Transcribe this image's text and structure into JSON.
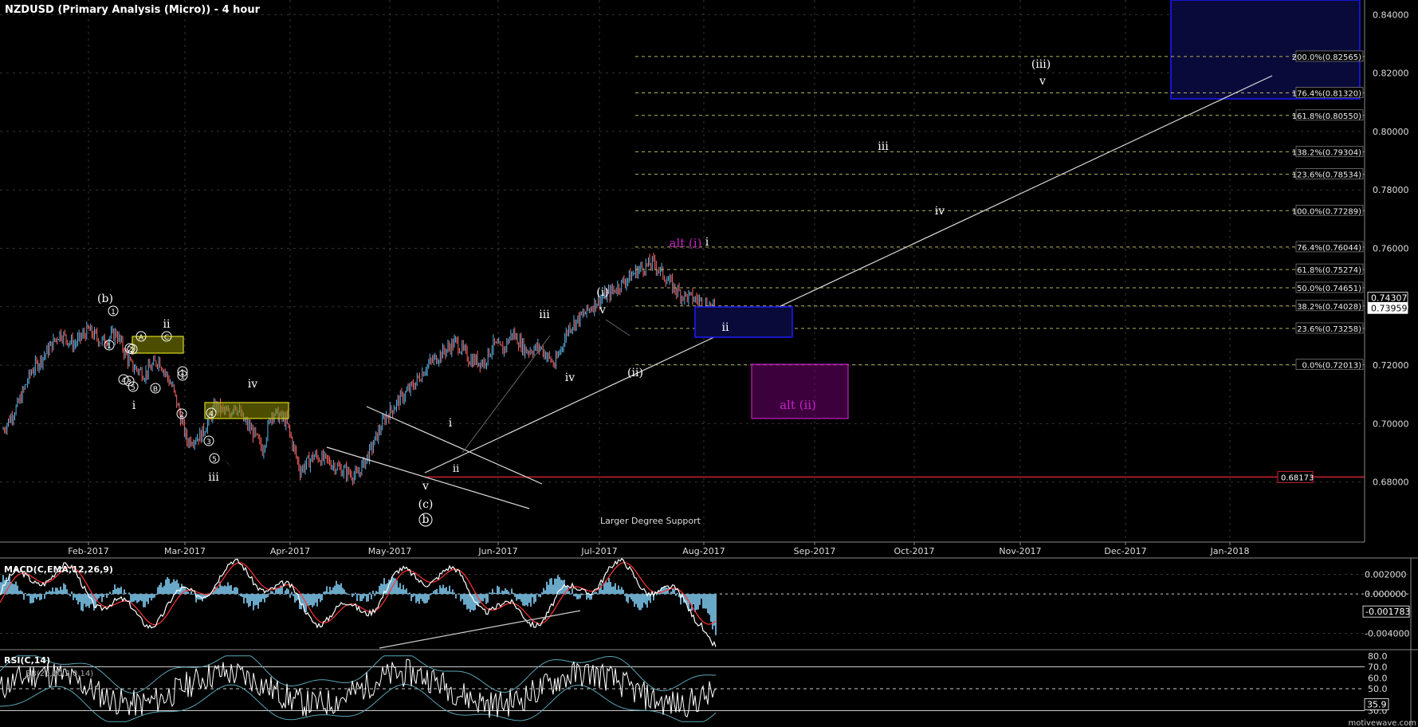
{
  "title": "NZDUSD (Primary Analysis (Micro)) - 4 hour",
  "watermark": "motivewave.com",
  "colors": {
    "background": "#000000",
    "up_bar": "#5ab4e6",
    "down_bar": "#ff6666",
    "grid": "#333333",
    "support": "#cc2233",
    "fib": "#b5b55e",
    "blue_box": "#1a1aff",
    "blue_box_fill": "#0a0a3a",
    "magenta": "#c81fc8",
    "yellow": "#d8d820",
    "macd_line": "#ffffff",
    "macd_signal": "#ff3333",
    "macd_hist": "#6aa8c8",
    "rsi_line": "#ffffff",
    "bb_line": "#5aa5b5"
  },
  "chart_data": [
    {
      "type": "line",
      "panel": "price",
      "ylim": [
        0.66,
        0.845
      ],
      "yticks": [
        "0.84000",
        "0.82000",
        "0.80000",
        "0.78000",
        "0.76000",
        "0.74000",
        "0.72000",
        "0.70000",
        "0.68000"
      ],
      "xticks": [
        "Feb-2017",
        "Mar-2017",
        "Apr-2017",
        "May-2017",
        "Jun-2017",
        "Jul-2017",
        "Aug-2017",
        "Sep-2017",
        "Oct-2017",
        "Nov-2017",
        "Dec-2017",
        "Jan-2018"
      ],
      "series": [
        {
          "x": [
            0,
            15,
            30,
            45,
            60,
            75,
            90,
            105,
            120,
            135,
            150,
            165,
            180,
            195,
            210,
            225,
            240,
            245,
            255,
            265,
            275,
            285,
            300,
            315,
            330,
            345,
            360,
            375,
            390,
            405,
            420,
            435,
            450,
            465,
            480,
            495,
            510,
            520,
            530,
            540,
            555,
            570,
            585,
            600,
            615,
            630,
            645,
            660,
            675,
            690,
            700,
            710,
            720,
            730,
            740,
            748,
            756
          ],
          "values": [
            0.698,
            0.706,
            0.718,
            0.724,
            0.731,
            0.727,
            0.732,
            0.728,
            0.731,
            0.72,
            0.717,
            0.722,
            0.712,
            0.694,
            0.696,
            0.706,
            0.703,
            0.707,
            0.701,
            0.697,
            0.691,
            0.704,
            0.701,
            0.684,
            0.689,
            0.687,
            0.684,
            0.682,
            0.691,
            0.702,
            0.708,
            0.713,
            0.72,
            0.724,
            0.728,
            0.722,
            0.721,
            0.727,
            0.725,
            0.731,
            0.725,
            0.726,
            0.72,
            0.733,
            0.737,
            0.742,
            0.745,
            0.749,
            0.753,
            0.755,
            0.751,
            0.747,
            0.744,
            0.743,
            0.742,
            0.7405,
            0.7396
          ]
        }
      ],
      "price_tags": [
        "0.74307",
        "0.73959",
        "0.68173"
      ],
      "fib_levels": [
        {
          "label": "200.0%(0.82565)",
          "value": 0.82565
        },
        {
          "label": "176.4%(0.81320)",
          "value": 0.8132
        },
        {
          "label": "161.8%(0.80550)",
          "value": 0.8055
        },
        {
          "label": "138.2%(0.79304)",
          "value": 0.79304
        },
        {
          "label": "123.6%(0.78534)",
          "value": 0.78534
        },
        {
          "label": "100.0%(0.77289)",
          "value": 0.77289
        },
        {
          "label": "76.4%(0.76044)",
          "value": 0.76044
        },
        {
          "label": "61.8%(0.75274)",
          "value": 0.75274
        },
        {
          "label": "50.0%(0.74651)",
          "value": 0.74651
        },
        {
          "label": "38.2%(0.74028)",
          "value": 0.74028
        },
        {
          "label": "23.6%(0.73258)",
          "value": 0.73258
        },
        {
          "label": "0.0%(0.72013)",
          "value": 0.72013
        }
      ],
      "support_level": 0.68173,
      "annotations": {
        "support_text": "Larger Degree Support",
        "wave_labels": [
          "(b)",
          "ii",
          "i",
          "iv",
          "iii",
          "v",
          "(c)",
          "b",
          "i",
          "ii",
          "iii",
          "iv",
          "(i)",
          "v",
          "(ii)",
          "alt (i)",
          "i",
          "ii",
          "alt (ii)",
          "iii",
          "iv",
          "(iii)",
          "v"
        ],
        "sub_labels": [
          "1",
          "2",
          "3",
          "4",
          "5",
          "A",
          "B",
          "C"
        ]
      }
    },
    {
      "type": "line",
      "panel": "macd",
      "title": "MACD(C,EMA,12,26,9)",
      "ylim": [
        -0.0055,
        0.0035
      ],
      "yticks": [
        "0.002000",
        "0.000000",
        "-0.004000"
      ],
      "current_value": "-0.001783"
    },
    {
      "type": "line",
      "panel": "rsi",
      "title": "RSI(C,14)",
      "legend": "BB(20,20,2.0,14)",
      "ylim": [
        18,
        82
      ],
      "yticks": [
        "80.0",
        "70.0",
        "60.0",
        "50.0",
        "30.0"
      ],
      "levels": [
        "70.0",
        "50.0"
      ],
      "current_value": "35.9"
    }
  ]
}
